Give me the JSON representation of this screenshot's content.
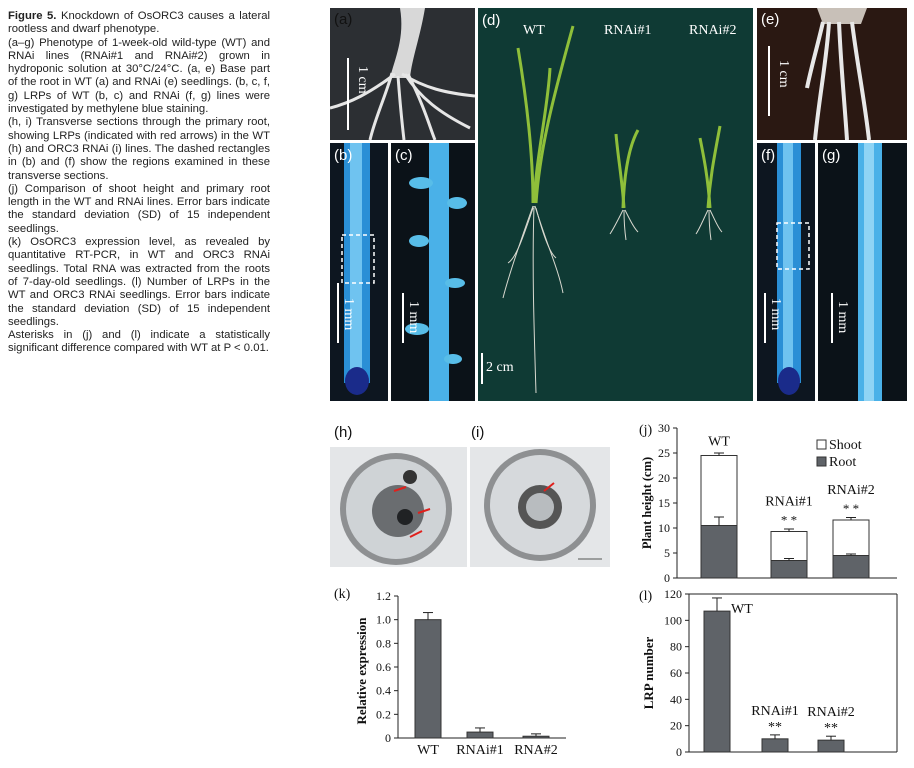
{
  "caption": {
    "figure_label": "Figure 5.",
    "lines": [
      "Knockdown of OsORC3 causes a lateral rootless and dwarf phenotype.",
      "(a–g) Phenotype of 1-week-old wild-type (WT) and RNAi lines (RNAi#1 and RNAi#2) grown in hydroponic solution at 30°C/24°C. (a, e) Base part of the root in WT (a) and RNAi (e) seedlings. (b, c, f, g) LRPs of WT (b, c) and RNAi (f, g) lines were investigated by methylene blue staining.",
      "(h, i) Transverse sections through the primary root, showing LRPs (indicated with red arrows) in the WT (h) and ORC3 RNAi (i) lines. The dashed rectangles in (b) and (f) show the regions examined in these transverse sections.",
      "(j) Comparison of shoot height and primary root length in the WT and RNAi lines. Error bars indicate the standard deviation (SD) of 15 independent seedlings.",
      "(k) OsORC3 expression level, as revealed by quantitative RT-PCR, in WT and ORC3 RNAi seedlings. Total RNA was extracted from the roots of 7-day-old seedlings. (l) Number of LRPs in the WT and ORC3 RNAi seedlings. Error bars indicate the standard deviation (SD) of 15 independent seedlings.",
      "Asterisks in (j) and (l) indicate a statistically significant difference compared with WT at P < 0.01."
    ]
  },
  "panels": {
    "a": {
      "label": "(a)",
      "scale": "1 cm"
    },
    "b": {
      "label": "(b)",
      "scale": "1 mm"
    },
    "c": {
      "label": "(c)",
      "scale": "1 mm"
    },
    "d": {
      "label": "(d)",
      "scale": "2 cm",
      "wt": "WT",
      "rnai1": "RNAi#1",
      "rnai2": "RNAi#2"
    },
    "e": {
      "label": "(e)",
      "scale": "1 cm"
    },
    "f": {
      "label": "(f)",
      "scale": "1 mm"
    },
    "g": {
      "label": "(g)",
      "scale": "1 mm"
    },
    "h": {
      "label": "(h)"
    },
    "i": {
      "label": "(i)"
    }
  },
  "colors": {
    "dark_bar": "#5f6368",
    "blue_stain": "#2a8fd6",
    "green_bg": "#0f3a34",
    "arrow": "#e0201c"
  },
  "chart_data": [
    {
      "panel": "(j)",
      "type": "bar",
      "stacked": true,
      "categories": [
        "WT",
        "RNAi#1",
        "RNAi#2"
      ],
      "ylabel": "Plant height (cm)",
      "ylim": [
        0,
        30
      ],
      "yticks": [
        0,
        5,
        10,
        15,
        20,
        25,
        30
      ],
      "series": [
        {
          "name": "Root",
          "values": [
            10.5,
            3.5,
            4.5
          ],
          "errors": [
            1.7,
            0.4,
            0.3
          ]
        },
        {
          "name": "Shoot",
          "values": [
            14.0,
            5.8,
            7.1
          ],
          "errors": [
            0.5,
            0.5,
            0.5
          ]
        }
      ],
      "annotations": [
        "* *",
        "* *",
        "* *",
        "* *"
      ],
      "legend": "top-right"
    },
    {
      "panel": "(k)",
      "type": "bar",
      "categories": [
        "WT",
        "RNAi#1",
        "RNA#2"
      ],
      "values": [
        1.0,
        0.05,
        0.015
      ],
      "errors": [
        0.06,
        0.035,
        0.02
      ],
      "ylabel": "Relative expression",
      "ylim": [
        0,
        1.2
      ],
      "yticks": [
        "0",
        "0.2",
        "0.4",
        "0.6",
        "0.8",
        "1.0",
        "1.2"
      ]
    },
    {
      "panel": "(l)",
      "type": "bar",
      "categories": [
        "WT",
        "RNAi#1",
        "RNAi#2"
      ],
      "values": [
        107,
        10,
        9
      ],
      "errors": [
        10,
        3,
        3
      ],
      "ylabel": "LRP number",
      "ylim": [
        0,
        120
      ],
      "yticks": [
        0,
        20,
        40,
        60,
        80,
        100,
        120
      ],
      "annotations": [
        "**",
        "**"
      ]
    }
  ]
}
